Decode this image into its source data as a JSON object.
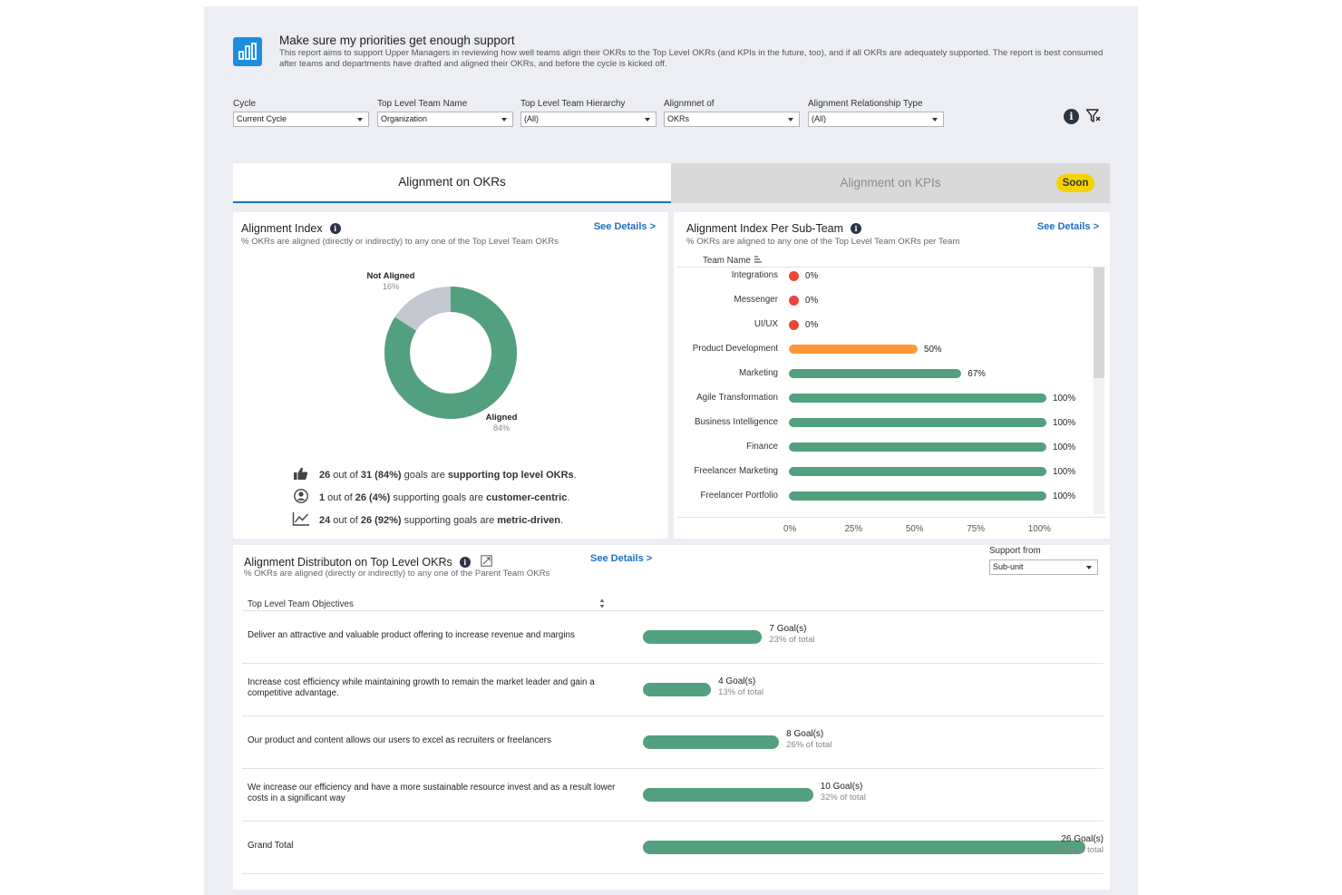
{
  "header": {
    "title": "Make sure my priorities get enough support",
    "description": "This report aims to support Upper Managers in reviewing how well teams align their OKRs to the Top Level OKRs (and KPIs in the future, too), and if all OKRs are adequately supported. The report is best consumed after teams and departments have drafted and aligned their OKRs, and before the cycle is kicked off."
  },
  "filters": [
    {
      "label": "Cycle",
      "value": "Current Cycle"
    },
    {
      "label": "Top Level Team Name",
      "value": "Organization"
    },
    {
      "label": "Top Level Team Hierarchy",
      "value": "(All)"
    },
    {
      "label": "Alignmnet of",
      "value": "OKRs"
    },
    {
      "label": "Alignment Relationship Type",
      "value": "(All)"
    }
  ],
  "tabs": {
    "okrs": "Alignment on OKRs",
    "kpis": "Alignment on KPIs",
    "soon": "Soon"
  },
  "index": {
    "title": "Alignment Index",
    "subtitle": "% OKRs are aligned (directly or indirectly) to any one of the Top Level Team OKRs",
    "see_details": "See Details >",
    "not_aligned_label": "Not Aligned",
    "not_aligned_pct": "16%",
    "aligned_label": "Aligned",
    "aligned_pct": "84%",
    "aligned_fraction": 0.84,
    "colors": {
      "aligned": "#52a07f",
      "not_aligned": "#c3c7cf"
    },
    "stats": [
      {
        "icon": "thumbs-up-icon",
        "num": "26",
        "mid": " out of ",
        "den": "31 (84%)",
        "text": " goals are ",
        "em": "supporting top level OKRs",
        "end": "."
      },
      {
        "icon": "user-circle-icon",
        "num": "1",
        "mid": " out of ",
        "den": "26 (4%)",
        "text": " supporting goals are ",
        "em": "customer-centric",
        "end": "."
      },
      {
        "icon": "trend-chart-icon",
        "num": "24",
        "mid": " out of ",
        "den": "26 (92%)",
        "text": " supporting goals are ",
        "em": "metric-driven",
        "end": "."
      }
    ]
  },
  "subteam": {
    "title": "Alignment Index Per Sub-Team",
    "subtitle": "% OKRs are aligned to any one of the Top Level Team OKRs per Team",
    "see_details": "See Details >",
    "column_header": "Team Name",
    "teams": [
      {
        "name": "Integrations",
        "value": 0,
        "label": "0%"
      },
      {
        "name": "Messenger",
        "value": 0,
        "label": "0%"
      },
      {
        "name": "UI/UX",
        "value": 0,
        "label": "0%"
      },
      {
        "name": "Product Development",
        "value": 50,
        "label": "50%"
      },
      {
        "name": "Marketing",
        "value": 67,
        "label": "67%"
      },
      {
        "name": "Agile Transformation",
        "value": 100,
        "label": "100%"
      },
      {
        "name": "Business Intelligence",
        "value": 100,
        "label": "100%"
      },
      {
        "name": "Finance",
        "value": 100,
        "label": "100%"
      },
      {
        "name": "Freelancer Marketing",
        "value": 100,
        "label": "100%"
      },
      {
        "name": "Freelancer Portfolio",
        "value": 100,
        "label": "100%"
      }
    ],
    "axis_ticks": [
      "0%",
      "25%",
      "50%",
      "75%",
      "100%"
    ],
    "colors": {
      "low": "#e8473a",
      "mid": "#ff9838",
      "high": "#52a07f"
    }
  },
  "distribution": {
    "title": "Alignment Distributon on Top Level OKRs",
    "subtitle": "% OKRs are aligned (directly or indirectly) to any one of the Parent Team OKRs",
    "see_details": "See Details >",
    "support_label": "Support from",
    "support_value": "Sub-unit",
    "column_header": "Top Level Team Objectives",
    "rows": [
      {
        "objective": "Deliver an attractive and valuable product offering to increase revenue and margins",
        "goals": 7,
        "goals_label": "7 Goal(s)",
        "pct_label": "23% of total"
      },
      {
        "objective": "Increase cost efficiency while maintaining growth to remain the market leader and gain a competitive advantage.",
        "goals": 4,
        "goals_label": "4 Goal(s)",
        "pct_label": "13% of total"
      },
      {
        "objective": "Our product and content allows our users to excel as recruiters or freelancers",
        "goals": 8,
        "goals_label": "8 Goal(s)",
        "pct_label": "26% of total"
      },
      {
        "objective": "We increase our efficiency and have a more sustainable resource invest and as a result lower costs in a significant way",
        "goals": 10,
        "goals_label": "10 Goal(s)",
        "pct_label": "32% of total"
      },
      {
        "objective": "Grand Total",
        "goals": 26,
        "goals_label": "26 Goal(s)",
        "pct_label": "84% of total"
      }
    ]
  }
}
